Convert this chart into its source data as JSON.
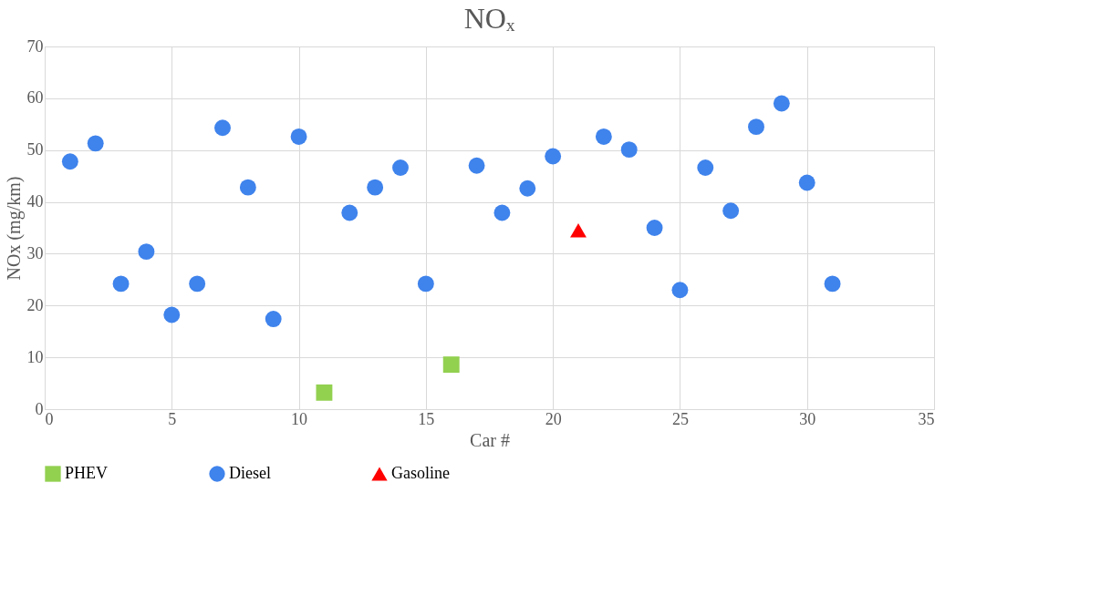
{
  "chart_data": {
    "type": "scatter",
    "title": "NOₓ",
    "xlabel": "Car #",
    "ylabel": "NOx (mg/km)",
    "xlim": [
      0,
      35
    ],
    "xticks": [
      0,
      5,
      10,
      15,
      20,
      25,
      30,
      35
    ],
    "ylim": [
      0,
      70
    ],
    "yticks": [
      0,
      10,
      20,
      30,
      40,
      50,
      60,
      70
    ],
    "grid": true,
    "legend": "bottom",
    "series": [
      {
        "name": "PHEV",
        "color": "#92d050",
        "marker": "square",
        "x": [
          11,
          16
        ],
        "values": [
          3.2,
          8.6
        ]
      },
      {
        "name": "Diesel",
        "color": "#3f83ec",
        "marker": "circle",
        "x": [
          1,
          2,
          3,
          4,
          5,
          6,
          7,
          8,
          9,
          10,
          12,
          13,
          14,
          15,
          17,
          18,
          19,
          20,
          22,
          23,
          24,
          25,
          26,
          27,
          28,
          29,
          30,
          31
        ],
        "values": [
          47.8,
          51.3,
          24.2,
          30.4,
          18.2,
          24.2,
          54.3,
          42.8,
          17.4,
          52.6,
          37.9,
          42.8,
          46.6,
          24.2,
          47.0,
          37.9,
          42.6,
          48.8,
          52.6,
          50.1,
          35.0,
          23.0,
          46.6,
          38.3,
          54.5,
          59.0,
          43.7,
          24.2
        ]
      },
      {
        "name": "Gasoline",
        "color": "#ff0000",
        "marker": "triangle",
        "x": [
          21
        ],
        "values": [
          34.5
        ]
      }
    ]
  }
}
